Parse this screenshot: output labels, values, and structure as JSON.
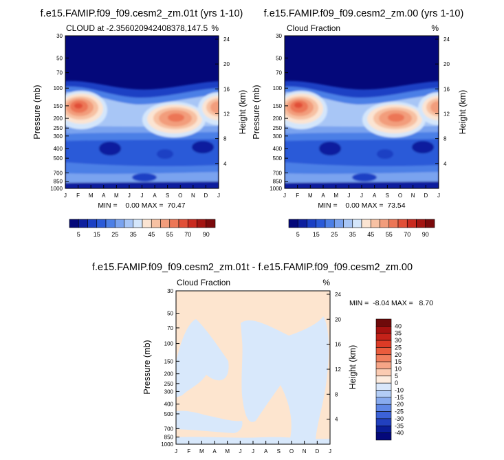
{
  "chart_data": [
    {
      "type": "contour",
      "title": "f.e15.FAMIP.f09_f09.cesm2_zm.01t (yrs 1-10)",
      "subtitle_left": "CLOUD at -2.356020942408378,147.5",
      "subtitle_right": "%",
      "ylabel": "Pressure (mb)",
      "y2label": "Height (km)",
      "stats": "MIN =    0.00 MAX =  70.47",
      "x_ticks": [
        "J",
        "F",
        "M",
        "A",
        "M",
        "J",
        "J",
        "A",
        "S",
        "O",
        "N",
        "D",
        "J"
      ],
      "y_ticks": [
        "30",
        "50",
        "70",
        "100",
        "150",
        "200",
        "250",
        "300",
        "400",
        "500",
        "700",
        "850",
        "1000"
      ],
      "y2_ticks": [
        "24",
        "20",
        "16",
        "12",
        "8",
        "4"
      ],
      "colorbar_labels": [
        "5",
        "15",
        "25",
        "35",
        "45",
        "55",
        "70",
        "90"
      ],
      "min": 0.0,
      "max": 70.47
    },
    {
      "type": "contour",
      "title": "f.e15.FAMIP.f09_f09.cesm2_zm.00 (yrs 1-10)",
      "subtitle_left": "Cloud Fraction",
      "subtitle_right": "%",
      "ylabel": "Pressure (mb)",
      "y2label": "Height (km)",
      "stats": "MIN =    0.00 MAX =  73.54",
      "x_ticks": [
        "J",
        "F",
        "M",
        "A",
        "M",
        "J",
        "J",
        "A",
        "S",
        "O",
        "N",
        "D",
        "J"
      ],
      "y_ticks": [
        "30",
        "50",
        "70",
        "100",
        "150",
        "200",
        "250",
        "300",
        "400",
        "500",
        "700",
        "850",
        "1000"
      ],
      "y2_ticks": [
        "24",
        "20",
        "16",
        "12",
        "8",
        "4"
      ],
      "colorbar_labels": [
        "5",
        "15",
        "25",
        "35",
        "45",
        "55",
        "70",
        "90"
      ],
      "min": 0.0,
      "max": 73.54
    },
    {
      "type": "contour",
      "title": "f.e15.FAMIP.f09_f09.cesm2_zm.01t - f.e15.FAMIP.f09_f09.cesm2_zm.00",
      "subtitle_left": "Cloud Fraction",
      "subtitle_right": "%",
      "ylabel": "Pressure (mb)",
      "y2label": "Height (km)",
      "stats": "MIN =  -8.04 MAX =   8.70",
      "x_ticks": [
        "J",
        "F",
        "M",
        "A",
        "M",
        "J",
        "J",
        "A",
        "S",
        "O",
        "N",
        "D",
        "J"
      ],
      "y_ticks": [
        "30",
        "50",
        "70",
        "100",
        "150",
        "200",
        "250",
        "300",
        "400",
        "500",
        "700",
        "850",
        "1000"
      ],
      "y2_ticks": [
        "24",
        "20",
        "16",
        "12",
        "8",
        "4"
      ],
      "colorbar_labels": [
        "40",
        "35",
        "30",
        "25",
        "20",
        "15",
        "10",
        "5",
        "0",
        "-10",
        "-15",
        "-20",
        "-25",
        "-30",
        "-35",
        "-40"
      ],
      "min": -8.04,
      "max": 8.7
    }
  ],
  "colors": {
    "seq": [
      "#04087a",
      "#0d1f9e",
      "#1a3fc4",
      "#2a5ad8",
      "#4c7fe6",
      "#7aa3ef",
      "#a8c6f6",
      "#d4e6fb",
      "#fbe4d2",
      "#f7c1a3",
      "#f29d7c",
      "#ec7656",
      "#e14f37",
      "#c92a1f",
      "#a31512",
      "#7a0a0c"
    ],
    "diff_pos": "#fde5cf",
    "diff_neg": "#d8e8fb"
  }
}
